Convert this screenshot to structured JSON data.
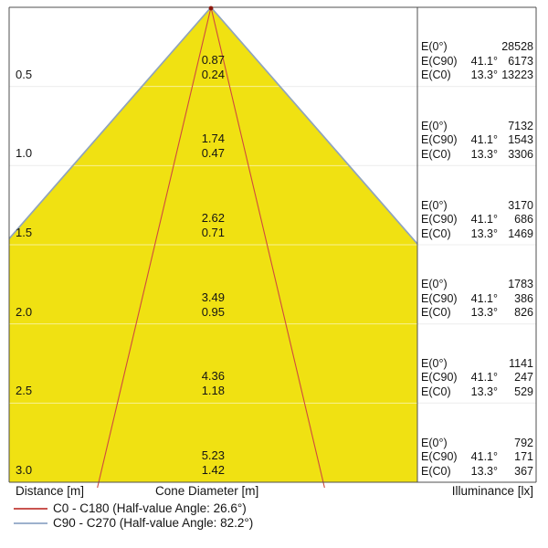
{
  "chart_data": {
    "type": "area",
    "subtype": "photometric-light-cone-diagram",
    "xlabel": "Cone Diameter [m]",
    "ylabel": "Distance [m]",
    "y2label": "Illuminance [lx]",
    "beams": [
      {
        "name": "C0 - C180",
        "half_value_angle_deg": 26.6,
        "half_angle_deg": 13.3,
        "color": "#cf4a3f",
        "style": "line"
      },
      {
        "name": "C90 - C270",
        "half_value_angle_deg": 82.2,
        "half_angle_deg": 41.1,
        "color": "#8fa3bd",
        "style": "filled-cone",
        "fill": "#f0e112"
      }
    ],
    "illuminance_row_labels": {
      "e0": "E(0°)",
      "ec90": "E(C90)",
      "ec0": "E(C0)"
    },
    "angles": {
      "ec90": "41.1°",
      "ec0": "13.3°"
    },
    "rows": [
      {
        "distance_m": "0.5",
        "cone_diameter_c90_m": "0.87",
        "cone_diameter_c0_m": "0.24",
        "E0_lx": "28528",
        "EC90_lx": "6173",
        "EC0_lx": "13223"
      },
      {
        "distance_m": "1.0",
        "cone_diameter_c90_m": "1.74",
        "cone_diameter_c0_m": "0.47",
        "E0_lx": "7132",
        "EC90_lx": "1543",
        "EC0_lx": "3306"
      },
      {
        "distance_m": "1.5",
        "cone_diameter_c90_m": "2.62",
        "cone_diameter_c0_m": "0.71",
        "E0_lx": "3170",
        "EC90_lx": "686",
        "EC0_lx": "1469"
      },
      {
        "distance_m": "2.0",
        "cone_diameter_c90_m": "3.49",
        "cone_diameter_c0_m": "0.95",
        "E0_lx": "1783",
        "EC90_lx": "386",
        "EC0_lx": "826"
      },
      {
        "distance_m": "2.5",
        "cone_diameter_c90_m": "4.36",
        "cone_diameter_c0_m": "1.18",
        "E0_lx": "1141",
        "EC90_lx": "247",
        "EC0_lx": "529"
      },
      {
        "distance_m": "3.0",
        "cone_diameter_c90_m": "5.23",
        "cone_diameter_c0_m": "1.42",
        "E0_lx": "792",
        "EC90_lx": "171",
        "EC0_lx": "367"
      }
    ]
  },
  "axis": {
    "distance_label": "Distance [m]",
    "cone_label": "Cone Diameter [m]",
    "illuminance_label": "Illuminance [lx]"
  },
  "legend": [
    {
      "label": "C0 - C180 (Half-value Angle: 26.6°)",
      "color": "#c9544f"
    },
    {
      "label": "C90 - C270 (Half-value Angle: 82.2°)",
      "color": "#9db1cd"
    }
  ],
  "colors": {
    "cone_fill": "#f0e112",
    "cone_edge": "#8fa3bd",
    "narrow_beam": "#cf4a3f",
    "apex_dot": "#8b170c",
    "gridline": "#dcdcdc",
    "border": "#4f4f4f"
  }
}
